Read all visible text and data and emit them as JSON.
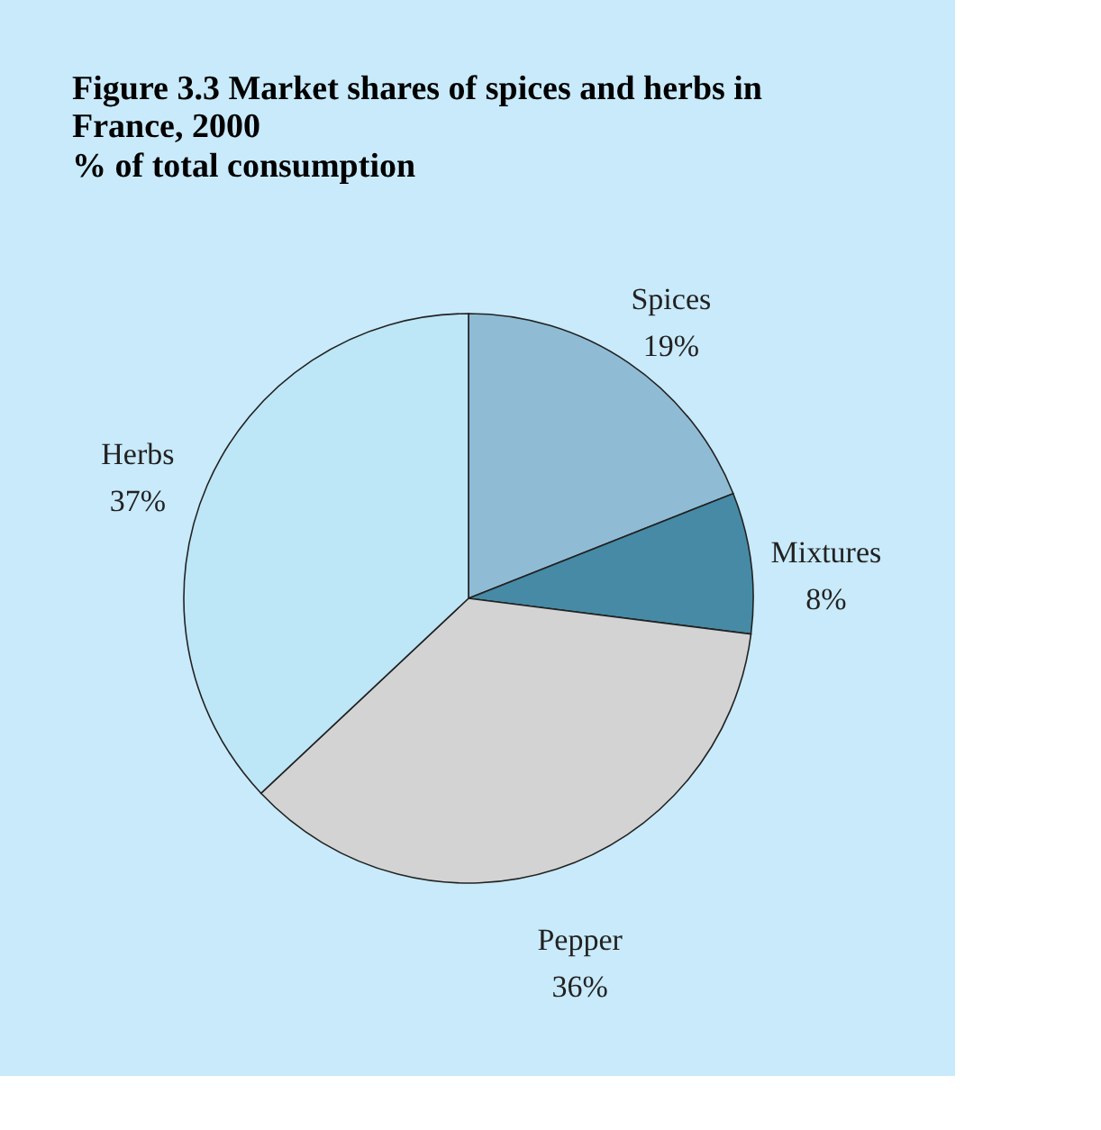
{
  "chart_data": {
    "type": "pie",
    "title": "Figure 3.3 Market shares of spices and herbs in France, 2000",
    "subtitle": "% of total consumption",
    "categories": [
      "Spices",
      "Mixtures",
      "Pepper",
      "Herbs"
    ],
    "values": [
      19,
      8,
      36,
      37
    ],
    "colors": [
      "#8fbcd4",
      "#468aa6",
      "#d3d3d3",
      "#bde6f7"
    ],
    "value_labels": [
      "19%",
      "8%",
      "36%",
      "37%"
    ],
    "legend": false
  }
}
